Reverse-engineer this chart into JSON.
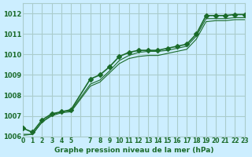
{
  "title": "Graphe pression niveau de la mer (hPa)",
  "bg_color": "#cceeff",
  "grid_color": "#aacccc",
  "line_color": "#1a6b2a",
  "xlim": [
    0,
    23
  ],
  "ylim": [
    1006.0,
    1012.5
  ],
  "xtick_labels": [
    "0",
    "1",
    "2",
    "3",
    "4",
    "5",
    "",
    "7",
    "8",
    "9",
    "10",
    "11",
    "12",
    "13",
    "14",
    "15",
    "16",
    "17",
    "18",
    "19",
    "20",
    "21",
    "22",
    "23"
  ],
  "ytick_values": [
    1006,
    1007,
    1008,
    1009,
    1010,
    1011,
    1012
  ],
  "series": [
    {
      "x": [
        0,
        1,
        2,
        3,
        4,
        5,
        7,
        8,
        9,
        10,
        11,
        12,
        13,
        14,
        15,
        16,
        17,
        18,
        19,
        20,
        21,
        22,
        23
      ],
      "y": [
        1006.4,
        1006.2,
        1006.8,
        1007.1,
        1007.2,
        1007.3,
        1008.8,
        1009.0,
        1009.4,
        1009.9,
        1010.1,
        1010.2,
        1010.2,
        1010.2,
        1010.3,
        1010.4,
        1010.5,
        1011.0,
        1011.9,
        1011.9,
        1011.9,
        1011.95,
        1011.95
      ],
      "marker": "D",
      "markersize": 3,
      "linewidth": 1.2
    },
    {
      "x": [
        0,
        1,
        2,
        3,
        4,
        5,
        7,
        8,
        9,
        10,
        11,
        12,
        13,
        14,
        15,
        16,
        17,
        18,
        19,
        20,
        21,
        22,
        23
      ],
      "y": [
        1006.1,
        1006.1,
        1006.7,
        1007.05,
        1007.2,
        1007.25,
        1008.55,
        1008.75,
        1009.2,
        1009.7,
        1009.95,
        1010.1,
        1010.15,
        1010.15,
        1010.2,
        1010.3,
        1010.4,
        1010.9,
        1011.75,
        1011.75,
        1011.75,
        1011.8,
        1011.8
      ],
      "marker": null,
      "markersize": 0,
      "linewidth": 0.8
    },
    {
      "x": [
        0,
        1,
        2,
        3,
        4,
        5,
        7,
        8,
        9,
        10,
        11,
        12,
        13,
        14,
        15,
        16,
        17,
        18,
        19,
        20,
        21,
        22,
        23
      ],
      "y": [
        1006.05,
        1006.1,
        1006.7,
        1007.0,
        1007.15,
        1007.2,
        1008.45,
        1008.65,
        1009.1,
        1009.55,
        1009.8,
        1009.9,
        1009.95,
        1009.95,
        1010.05,
        1010.15,
        1010.25,
        1010.75,
        1011.6,
        1011.65,
        1011.65,
        1011.7,
        1011.7
      ],
      "marker": null,
      "markersize": 0,
      "linewidth": 0.8
    }
  ]
}
